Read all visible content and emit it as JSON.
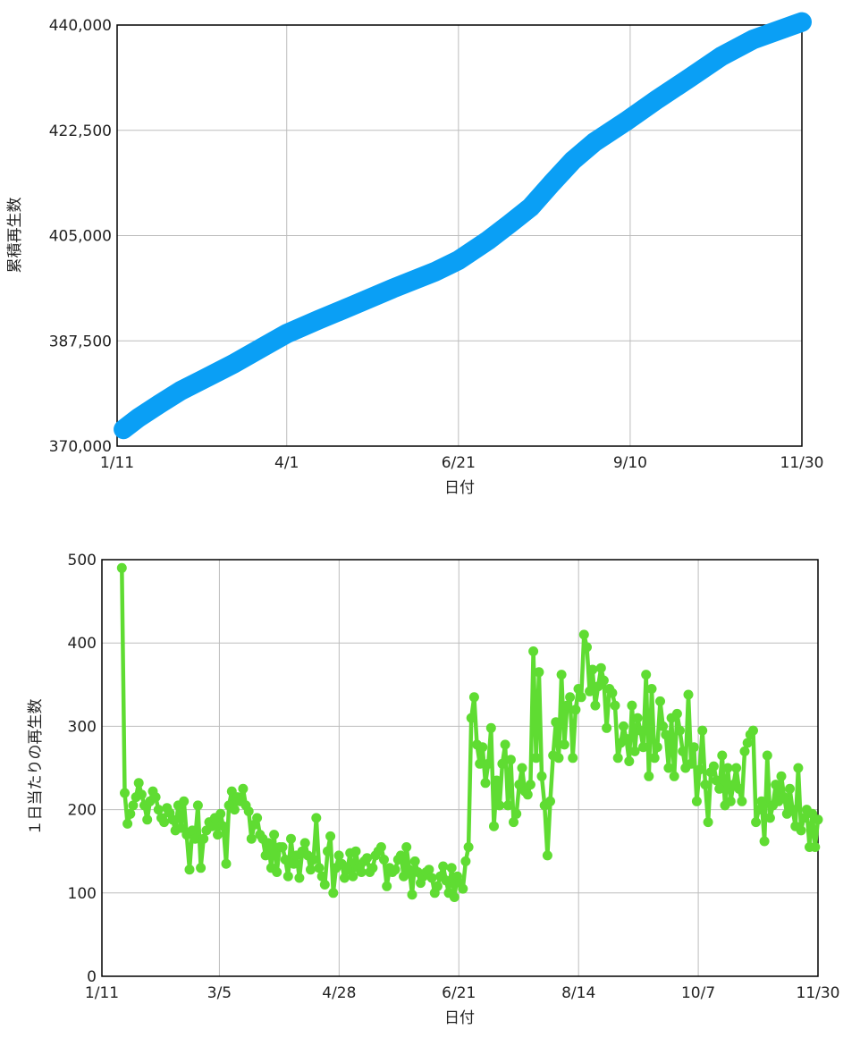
{
  "colors": {
    "cumulative": "#0a9ff5",
    "daily": "#5fdc32",
    "grid": "#bdbdbd",
    "frame": "#000000"
  },
  "chart_data": [
    {
      "type": "line",
      "xlabel": "日付",
      "ylabel": "累積再生数",
      "ylim": [
        370000,
        440000
      ],
      "yticks": [
        "370,000",
        "387,500",
        "405,000",
        "422,500",
        "440,000"
      ],
      "xticks": [
        "1/11",
        "4/1",
        "6/21",
        "9/10",
        "11/30"
      ],
      "x_day_ticks": [
        0,
        80,
        161,
        242,
        323
      ],
      "grid": true,
      "series": [
        {
          "x": [
            3,
            10,
            20,
            30,
            40,
            55,
            70,
            80,
            95,
            110,
            130,
            150,
            161,
            175,
            185,
            195,
            205,
            215,
            225,
            240,
            255,
            270,
            285,
            300,
            315,
            323
          ],
          "values": [
            372800,
            374700,
            377000,
            379200,
            381000,
            383700,
            386700,
            388700,
            391000,
            393200,
            396200,
            399000,
            400900,
            404200,
            406900,
            409700,
            413700,
            417500,
            420500,
            424000,
            427700,
            431200,
            434800,
            437600,
            439500,
            440500
          ]
        }
      ]
    },
    {
      "type": "line",
      "xlabel": "日付",
      "ylabel": "１日当たりの再生数",
      "ylim": [
        0,
        500
      ],
      "yticks": [
        "0",
        "100",
        "200",
        "300",
        "400",
        "500"
      ],
      "xticks": [
        "1/11",
        "3/5",
        "4/28",
        "6/21",
        "8/14",
        "10/7",
        "11/30"
      ],
      "x_day_ticks": [
        0,
        53,
        107,
        161,
        215,
        269,
        323
      ],
      "grid": true,
      "series": [
        {
          "values": [
            490,
            220,
            183,
            195,
            205,
            215,
            232,
            218,
            205,
            188,
            210,
            222,
            215,
            200,
            190,
            185,
            202,
            196,
            188,
            175,
            205,
            178,
            210,
            170,
            128,
            175,
            165,
            205,
            130,
            165,
            175,
            185,
            180,
            190,
            170,
            195,
            180,
            135,
            205,
            222,
            200,
            215,
            210,
            225,
            205,
            198,
            165,
            182,
            190,
            170,
            165,
            145,
            160,
            130,
            170,
            125,
            155,
            155,
            140,
            120,
            165,
            135,
            145,
            118,
            150,
            160,
            145,
            128,
            140,
            190,
            130,
            120,
            110,
            150,
            168,
            100,
            130,
            145,
            135,
            118,
            128,
            148,
            120,
            150,
            130,
            125,
            138,
            142,
            125,
            130,
            145,
            150,
            155,
            140,
            108,
            130,
            125,
            128,
            140,
            145,
            120,
            155,
            128,
            98,
            138,
            125,
            112,
            120,
            125,
            128,
            118,
            100,
            108,
            120,
            132,
            115,
            100,
            130,
            95,
            120,
            112,
            105,
            138,
            155,
            310,
            335,
            278,
            255,
            275,
            232,
            255,
            298,
            180,
            235,
            205,
            255,
            278,
            205,
            260,
            185,
            195,
            230,
            250,
            222,
            218,
            230,
            390,
            262,
            365,
            240,
            205,
            145,
            210,
            265,
            305,
            262,
            362,
            278,
            325,
            335,
            262,
            320,
            345,
            335,
            410,
            395,
            342,
            368,
            325,
            348,
            370,
            355,
            298,
            345,
            340,
            325,
            262,
            280,
            300,
            285,
            258,
            325,
            270,
            310,
            295,
            275,
            362,
            240,
            345,
            262,
            275,
            330,
            300,
            290,
            250,
            310,
            240,
            315,
            295,
            270,
            250,
            338,
            255,
            275,
            210,
            248,
            295,
            230,
            185,
            245,
            252,
            235,
            225,
            265,
            205,
            250,
            210,
            230,
            250,
            225,
            210,
            270,
            280,
            290,
            295,
            185,
            200,
            210,
            162,
            265,
            190,
            205,
            230,
            210,
            240,
            215,
            195,
            225,
            200,
            180,
            250,
            175,
            190,
            200,
            155,
            195,
            155,
            188
          ]
        }
      ]
    }
  ]
}
